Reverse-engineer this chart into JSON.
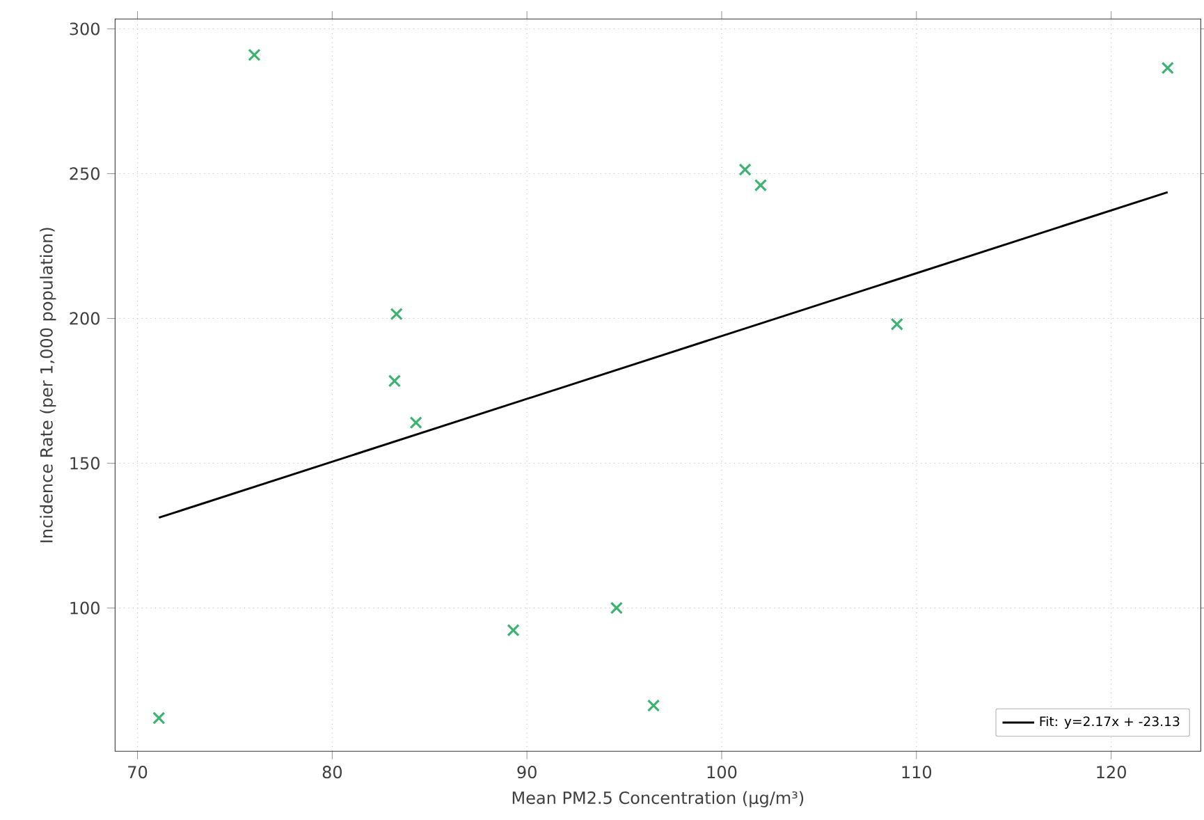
{
  "chart_data": {
    "type": "scatter",
    "xlabel": "Mean PM2.5 Concentration (µg/m³)",
    "ylabel": "Incidence Rate (per 1,000 population)",
    "xlim": [
      68.85,
      124.6
    ],
    "ylim": [
      50.5,
      303.4
    ],
    "xticks": [
      70,
      80,
      90,
      100,
      110,
      120
    ],
    "yticks": [
      100,
      150,
      200,
      250,
      300
    ],
    "grid": true,
    "legend": "bottom right",
    "marker": "cross",
    "series": [
      {
        "color": "#3cb371",
        "x": [
          71.1,
          76.0,
          83.3,
          83.2,
          84.3,
          89.3,
          94.6,
          96.5,
          101.2,
          102.0,
          109.0,
          122.9
        ],
        "values": [
          62,
          291,
          201.5,
          178.4,
          164,
          92.3,
          100,
          66.3,
          251.4,
          246,
          198,
          286.5
        ]
      },
      {
        "type": "line",
        "name": "Fit: y=2.17x + -23.13",
        "color": "#000000",
        "line_style": "solid",
        "marker": "none",
        "x": [
          71.1,
          122.9
        ],
        "values": [
          131.2,
          243.6
        ]
      }
    ]
  }
}
